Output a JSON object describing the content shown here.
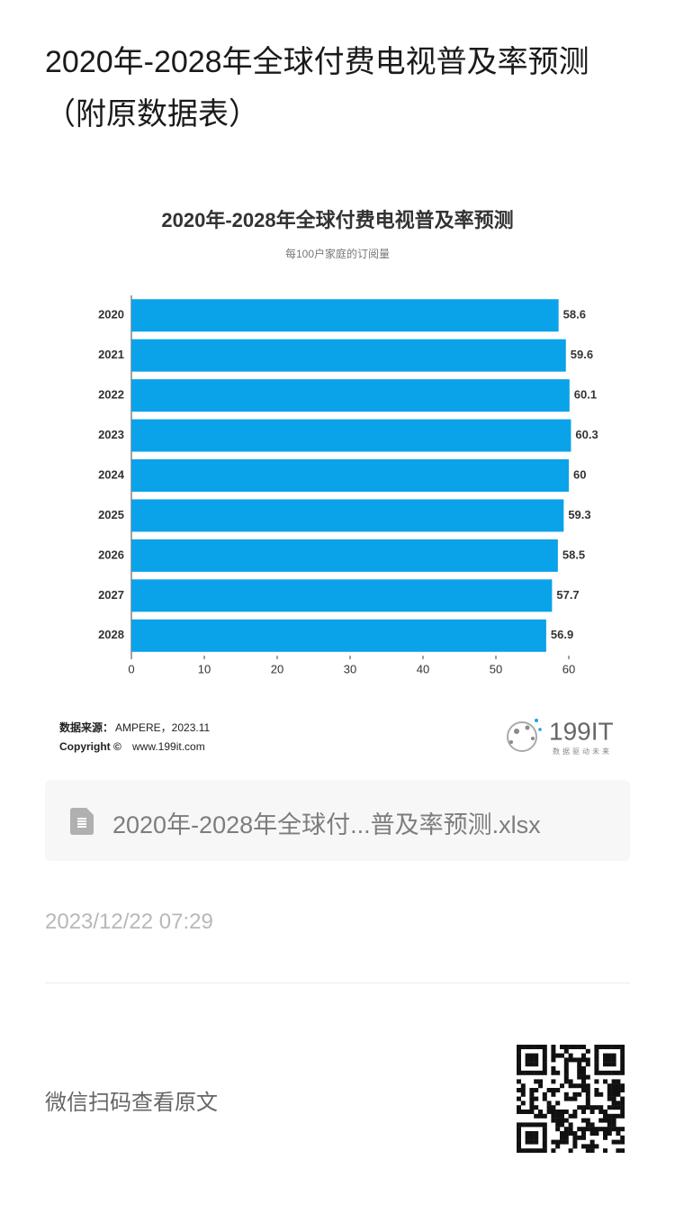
{
  "header": {
    "title": "2020年-2028年全球付费电视普及率预测（附原数据表）"
  },
  "chart_data": {
    "type": "bar",
    "orientation": "horizontal",
    "title": "2020年-2028年全球付费电视普及率预测",
    "subtitle": "每100户家庭的订阅量",
    "categories": [
      "2020",
      "2021",
      "2022",
      "2023",
      "2024",
      "2025",
      "2026",
      "2027",
      "2028"
    ],
    "values": [
      58.6,
      59.6,
      60.1,
      60.3,
      60,
      59.3,
      58.5,
      57.7,
      56.9
    ],
    "color": "#0aa2e8",
    "xlim": [
      0,
      60
    ],
    "xticks": [
      0,
      10,
      20,
      30,
      40,
      50,
      60
    ],
    "source_label": "数据来源：",
    "source": "AMPERE，2023.11",
    "copyright_label": "Copyright ©",
    "copyright": "www.199it.com",
    "logo": "199IT",
    "logo_slogan": "数据驱动未来"
  },
  "attachment": {
    "filename": "2020年-2028年全球付...普及率预测.xlsx"
  },
  "timestamp": "2023/12/22 07:29",
  "footer": {
    "qr_prompt": "微信扫码查看原文"
  }
}
